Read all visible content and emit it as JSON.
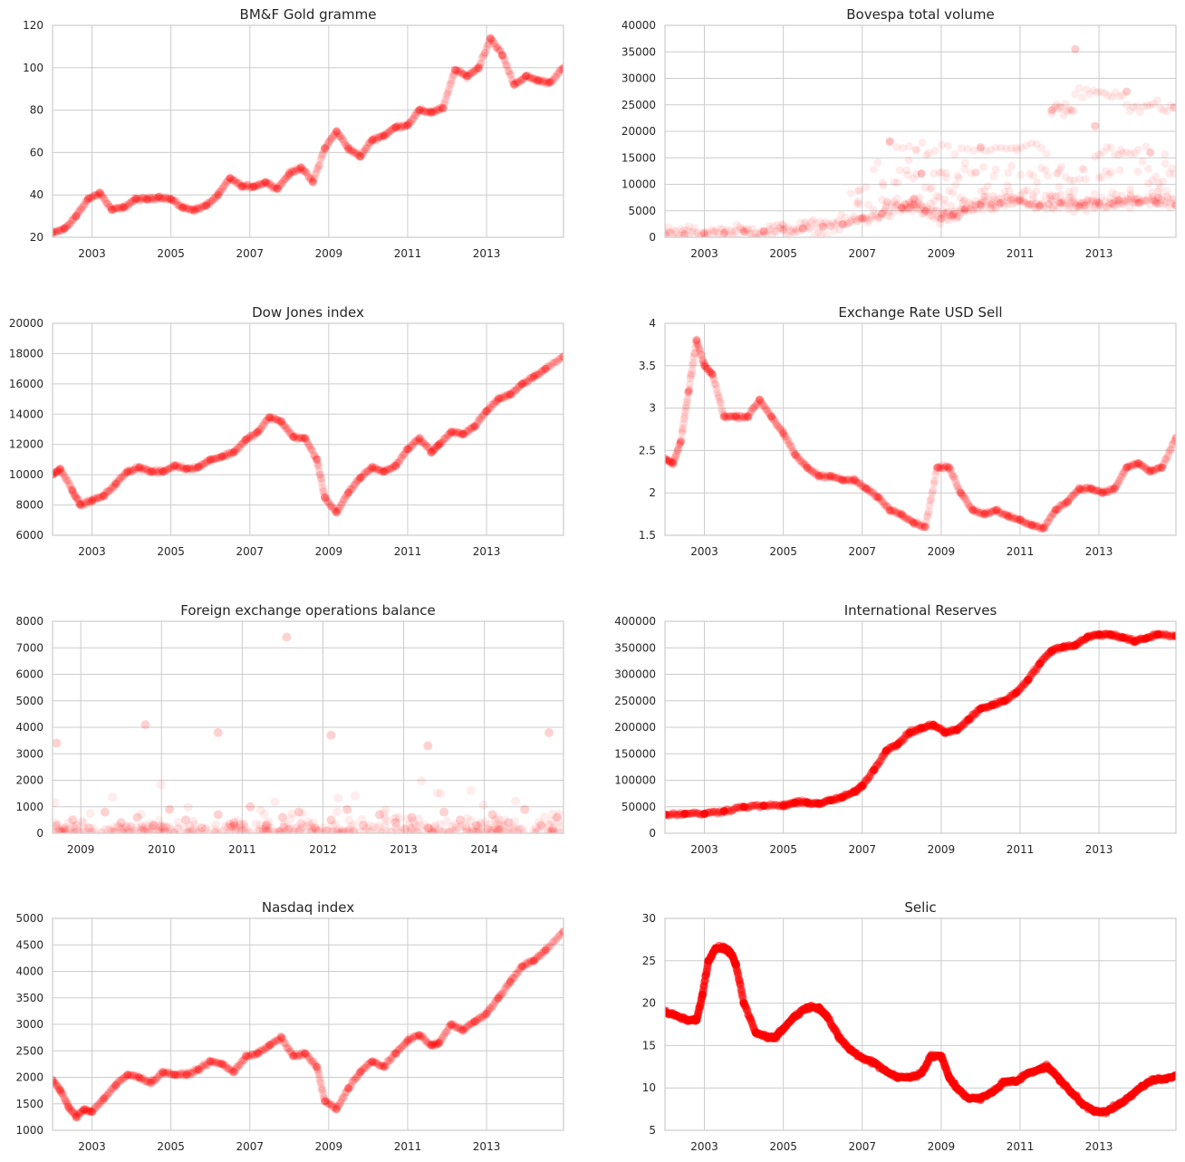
{
  "colors": {
    "point": "#ff0000",
    "grid": "#cccccc",
    "text": "#262626",
    "background": "#ffffff"
  },
  "chart_data": [
    {
      "type": "scatter",
      "title": "BM&F Gold gramme",
      "xlim": [
        2002.0,
        2014.95
      ],
      "ylim": [
        20,
        120
      ],
      "yticks": [
        20,
        40,
        60,
        80,
        100,
        120
      ],
      "xticks": [
        2003,
        2005,
        2007,
        2009,
        2011,
        2013
      ],
      "grid": true,
      "alpha": 0.12,
      "point_size": 4.5,
      "x": [
        2002.0,
        2002.3,
        2002.6,
        2002.9,
        2003.2,
        2003.5,
        2003.8,
        2004.1,
        2004.4,
        2004.7,
        2005.0,
        2005.3,
        2005.6,
        2005.9,
        2006.2,
        2006.5,
        2006.8,
        2007.1,
        2007.4,
        2007.7,
        2008.0,
        2008.3,
        2008.6,
        2008.9,
        2009.2,
        2009.5,
        2009.8,
        2010.1,
        2010.4,
        2010.7,
        2011.0,
        2011.3,
        2011.6,
        2011.9,
        2012.2,
        2012.5,
        2012.8,
        2013.1,
        2013.4,
        2013.7,
        2014.0,
        2014.3,
        2014.6,
        2014.95
      ],
      "y": [
        22,
        24,
        30,
        38,
        41,
        33,
        34,
        38,
        38,
        39,
        38,
        34,
        33,
        35,
        40,
        48,
        44,
        44,
        46,
        43,
        50,
        53,
        46,
        62,
        70,
        62,
        58,
        66,
        68,
        72,
        73,
        80,
        79,
        81,
        99,
        96,
        100,
        114,
        106,
        92,
        96,
        94,
        93,
        100
      ]
    },
    {
      "type": "scatter",
      "title": "Bovespa total volume",
      "xlim": [
        2002.0,
        2014.95
      ],
      "ylim": [
        0,
        40000
      ],
      "yticks": [
        0,
        5000,
        10000,
        15000,
        20000,
        25000,
        30000,
        35000,
        40000
      ],
      "xticks": [
        2003,
        2005,
        2007,
        2009,
        2011,
        2013
      ],
      "grid": true,
      "alpha": 0.08,
      "point_size": 4.5,
      "x": [
        2002.0,
        2002.5,
        2003.0,
        2003.5,
        2004.0,
        2004.5,
        2005.0,
        2005.5,
        2006.0,
        2006.5,
        2007.0,
        2007.5,
        2008.0,
        2008.3,
        2008.6,
        2009.0,
        2009.3,
        2009.6,
        2010.0,
        2010.5,
        2011.0,
        2011.5,
        2012.0,
        2012.5,
        2013.0,
        2013.5,
        2014.0,
        2014.5,
        2014.95,
        2007.7,
        2010.0,
        2011.8,
        2012.4,
        2013.7,
        2014.9,
        2008.5,
        2012.9,
        2014.3
      ],
      "y": [
        600,
        600,
        700,
        800,
        1000,
        1200,
        1400,
        1700,
        2000,
        2500,
        3500,
        4500,
        5500,
        6200,
        5000,
        3500,
        4200,
        5200,
        6000,
        6500,
        7000,
        6000,
        6500,
        5800,
        6500,
        7000,
        6500,
        7500,
        6000,
        18000,
        17000,
        24000,
        35500,
        27500,
        24500,
        12000,
        21000,
        16000
      ]
    },
    {
      "type": "scatter",
      "title": "Dow Jones index",
      "xlim": [
        2002.0,
        2014.95
      ],
      "ylim": [
        6000,
        20000
      ],
      "yticks": [
        6000,
        8000,
        10000,
        12000,
        14000,
        16000,
        18000,
        20000
      ],
      "xticks": [
        2003,
        2005,
        2007,
        2009,
        2011,
        2013
      ],
      "grid": true,
      "alpha": 0.12,
      "point_size": 4.5,
      "x": [
        2002.0,
        2002.2,
        2002.5,
        2002.7,
        2003.0,
        2003.3,
        2003.6,
        2003.9,
        2004.2,
        2004.5,
        2004.8,
        2005.1,
        2005.4,
        2005.7,
        2006.0,
        2006.3,
        2006.6,
        2006.9,
        2007.2,
        2007.5,
        2007.8,
        2008.1,
        2008.4,
        2008.7,
        2008.9,
        2009.2,
        2009.5,
        2009.8,
        2010.1,
        2010.4,
        2010.7,
        2011.0,
        2011.3,
        2011.6,
        2011.8,
        2012.1,
        2012.4,
        2012.7,
        2013.0,
        2013.3,
        2013.6,
        2013.9,
        2014.2,
        2014.5,
        2014.95
      ],
      "y": [
        10000,
        10400,
        9000,
        8000,
        8300,
        8600,
        9400,
        10200,
        10500,
        10200,
        10200,
        10600,
        10400,
        10500,
        11000,
        11200,
        11500,
        12300,
        12800,
        13800,
        13500,
        12500,
        12400,
        11000,
        8500,
        7500,
        8800,
        9800,
        10500,
        10200,
        10600,
        11700,
        12400,
        11500,
        12000,
        12800,
        12700,
        13200,
        14200,
        15000,
        15300,
        16000,
        16500,
        17000,
        17800
      ]
    },
    {
      "type": "scatter",
      "title": "Exchange Rate USD Sell",
      "xlim": [
        2002.0,
        2014.95
      ],
      "ylim": [
        1.5,
        4.0
      ],
      "yticks": [
        1.5,
        2.0,
        2.5,
        3.0,
        3.5,
        4.0
      ],
      "xticks": [
        2003,
        2005,
        2007,
        2009,
        2011,
        2013
      ],
      "grid": true,
      "alpha": 0.12,
      "point_size": 4.5,
      "x": [
        2002.0,
        2002.2,
        2002.4,
        2002.6,
        2002.8,
        2003.0,
        2003.2,
        2003.5,
        2003.8,
        2004.1,
        2004.4,
        2004.7,
        2005.0,
        2005.3,
        2005.6,
        2005.9,
        2006.2,
        2006.5,
        2006.8,
        2007.1,
        2007.4,
        2007.7,
        2008.0,
        2008.3,
        2008.6,
        2008.9,
        2009.2,
        2009.5,
        2009.8,
        2010.1,
        2010.4,
        2010.7,
        2011.0,
        2011.3,
        2011.6,
        2011.9,
        2012.2,
        2012.5,
        2012.8,
        2013.1,
        2013.4,
        2013.7,
        2014.0,
        2014.3,
        2014.6,
        2014.95
      ],
      "y": [
        2.4,
        2.35,
        2.6,
        3.2,
        3.8,
        3.5,
        3.4,
        2.9,
        2.9,
        2.9,
        3.1,
        2.9,
        2.7,
        2.45,
        2.3,
        2.2,
        2.2,
        2.15,
        2.15,
        2.05,
        1.95,
        1.8,
        1.75,
        1.65,
        1.6,
        2.3,
        2.3,
        2.0,
        1.8,
        1.75,
        1.8,
        1.72,
        1.68,
        1.62,
        1.58,
        1.8,
        1.9,
        2.05,
        2.05,
        2.0,
        2.05,
        2.3,
        2.35,
        2.25,
        2.3,
        2.65
      ]
    },
    {
      "type": "scatter",
      "title": "Foreign exchange operations balance",
      "xlim": [
        2008.65,
        2014.98
      ],
      "ylim": [
        0,
        8000
      ],
      "yticks": [
        0,
        1000,
        2000,
        3000,
        4000,
        5000,
        6000,
        7000,
        8000
      ],
      "xticks": [
        2009,
        2010,
        2011,
        2012,
        2013,
        2014
      ],
      "grid": true,
      "alpha": 0.07,
      "point_size": 5,
      "x": [
        2008.7,
        2008.9,
        2009.1,
        2009.3,
        2009.5,
        2009.7,
        2009.9,
        2010.1,
        2010.3,
        2010.5,
        2010.7,
        2010.9,
        2011.1,
        2011.3,
        2011.5,
        2011.7,
        2011.9,
        2012.1,
        2012.3,
        2012.5,
        2012.7,
        2012.9,
        2013.1,
        2013.3,
        2013.5,
        2013.7,
        2013.9,
        2014.1,
        2014.3,
        2014.5,
        2014.7,
        2014.9,
        2008.7,
        2009.8,
        2010.7,
        2011.55,
        2012.1,
        2013.3,
        2014.8
      ],
      "y": [
        300,
        500,
        200,
        800,
        400,
        600,
        300,
        900,
        500,
        200,
        700,
        400,
        1000,
        300,
        600,
        800,
        200,
        500,
        900,
        300,
        700,
        400,
        600,
        200,
        800,
        500,
        300,
        700,
        400,
        900,
        300,
        600,
        3400,
        4100,
        3800,
        7400,
        3700,
        3300,
        3800
      ]
    },
    {
      "type": "scatter",
      "title": "International Reserves",
      "xlim": [
        2002.0,
        2014.95
      ],
      "ylim": [
        0,
        400000
      ],
      "yticks": [
        0,
        50000,
        100000,
        150000,
        200000,
        250000,
        300000,
        350000,
        400000
      ],
      "xticks": [
        2003,
        2005,
        2007,
        2009,
        2011,
        2013
      ],
      "grid": true,
      "alpha": 0.3,
      "point_size": 4.5,
      "x": [
        2002.0,
        2002.5,
        2003.0,
        2003.5,
        2004.0,
        2004.5,
        2005.0,
        2005.3,
        2005.6,
        2005.9,
        2006.2,
        2006.5,
        2006.8,
        2007.0,
        2007.3,
        2007.6,
        2007.9,
        2008.2,
        2008.5,
        2008.8,
        2009.1,
        2009.4,
        2009.7,
        2010.0,
        2010.3,
        2010.6,
        2010.9,
        2011.2,
        2011.5,
        2011.8,
        2012.1,
        2012.4,
        2012.7,
        2013.0,
        2013.3,
        2013.6,
        2013.9,
        2014.2,
        2014.5,
        2014.95
      ],
      "y": [
        35000,
        37000,
        37000,
        42000,
        50000,
        52000,
        52000,
        58000,
        58000,
        56000,
        62000,
        68000,
        78000,
        90000,
        120000,
        155000,
        168000,
        190000,
        198000,
        205000,
        190000,
        195000,
        215000,
        235000,
        242000,
        250000,
        265000,
        290000,
        320000,
        345000,
        352000,
        355000,
        370000,
        375000,
        375000,
        370000,
        362000,
        368000,
        376000,
        372000
      ]
    },
    {
      "type": "scatter",
      "title": "Nasdaq index",
      "xlim": [
        2002.0,
        2014.95
      ],
      "ylim": [
        1000,
        5000
      ],
      "yticks": [
        1000,
        1500,
        2000,
        2500,
        3000,
        3500,
        4000,
        4500,
        5000
      ],
      "xticks": [
        2003,
        2005,
        2007,
        2009,
        2011,
        2013
      ],
      "grid": true,
      "alpha": 0.12,
      "point_size": 4.5,
      "x": [
        2002.0,
        2002.2,
        2002.4,
        2002.6,
        2002.8,
        2003.0,
        2003.3,
        2003.6,
        2003.9,
        2004.2,
        2004.5,
        2004.8,
        2005.1,
        2005.4,
        2005.7,
        2006.0,
        2006.3,
        2006.6,
        2006.9,
        2007.2,
        2007.5,
        2007.8,
        2008.1,
        2008.4,
        2008.7,
        2008.9,
        2009.2,
        2009.5,
        2009.8,
        2010.1,
        2010.4,
        2010.7,
        2011.0,
        2011.3,
        2011.6,
        2011.8,
        2012.1,
        2012.4,
        2012.7,
        2013.0,
        2013.3,
        2013.6,
        2013.9,
        2014.2,
        2014.5,
        2014.95
      ],
      "y": [
        1950,
        1750,
        1450,
        1250,
        1400,
        1350,
        1600,
        1850,
        2050,
        2000,
        1900,
        2100,
        2050,
        2050,
        2150,
        2300,
        2250,
        2100,
        2400,
        2450,
        2600,
        2750,
        2400,
        2450,
        2200,
        1550,
        1400,
        1800,
        2100,
        2300,
        2200,
        2450,
        2700,
        2800,
        2600,
        2650,
        3000,
        2900,
        3050,
        3200,
        3500,
        3800,
        4100,
        4200,
        4400,
        4750
      ]
    },
    {
      "type": "scatter",
      "title": "Selic",
      "xlim": [
        2002.0,
        2014.95
      ],
      "ylim": [
        5,
        30
      ],
      "yticks": [
        5,
        10,
        15,
        20,
        25,
        30
      ],
      "xticks": [
        2003,
        2005,
        2007,
        2009,
        2011,
        2013
      ],
      "grid": true,
      "alpha": 0.55,
      "point_size": 4.5,
      "x": [
        2002.0,
        2002.3,
        2002.6,
        2002.8,
        2002.95,
        2003.1,
        2003.3,
        2003.5,
        2003.65,
        2003.8,
        2004.0,
        2004.3,
        2004.6,
        2004.8,
        2005.0,
        2005.3,
        2005.6,
        2005.9,
        2006.1,
        2006.4,
        2006.7,
        2007.0,
        2007.3,
        2007.6,
        2007.9,
        2008.2,
        2008.5,
        2008.75,
        2009.0,
        2009.2,
        2009.4,
        2009.7,
        2010.0,
        2010.3,
        2010.6,
        2010.9,
        2011.2,
        2011.5,
        2011.7,
        2012.0,
        2012.3,
        2012.6,
        2012.9,
        2013.2,
        2013.5,
        2013.8,
        2014.1,
        2014.4,
        2014.7,
        2014.95
      ],
      "y": [
        19,
        18.5,
        18,
        18,
        21,
        25,
        26.5,
        26.5,
        26,
        24.5,
        20,
        16.5,
        16,
        16,
        17,
        18.5,
        19.5,
        19.5,
        18.5,
        16,
        14.5,
        13.5,
        13,
        12,
        11.25,
        11.25,
        11.75,
        13.75,
        13.75,
        11.25,
        10,
        8.75,
        8.75,
        9.5,
        10.75,
        10.75,
        11.75,
        12.25,
        12.5,
        11,
        9.5,
        8,
        7.25,
        7.25,
        8,
        9,
        10.25,
        11,
        11,
        11.5
      ]
    }
  ]
}
